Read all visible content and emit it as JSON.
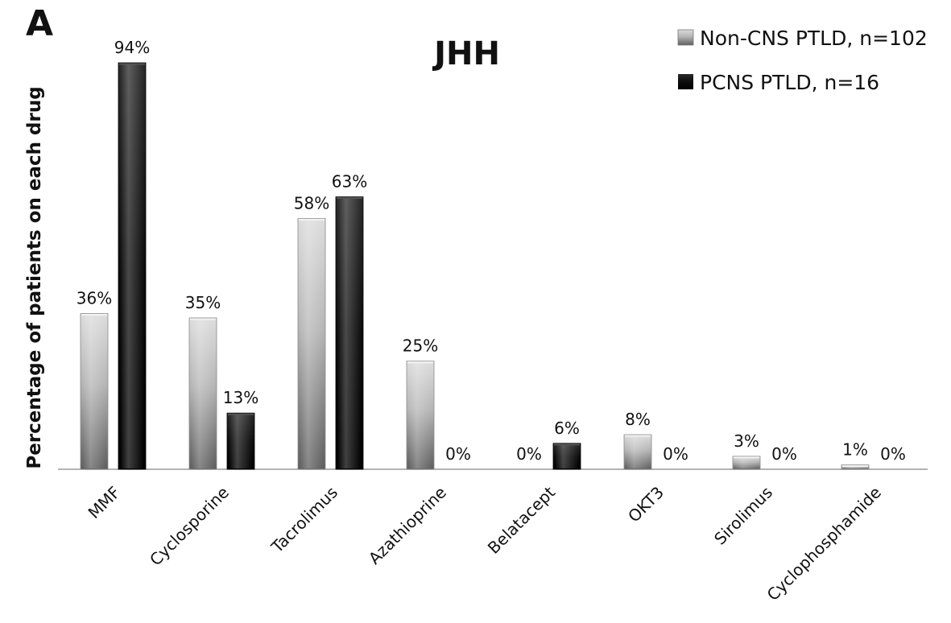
{
  "panel_label": "A",
  "chart_data": {
    "type": "bar",
    "title": "JHH",
    "xlabel": "",
    "ylabel": "Percentage of patients on each drug",
    "ylim": [
      0,
      100
    ],
    "grid": false,
    "legend_position": "top-right",
    "categories": [
      "MMF",
      "Cyclosporine",
      "Tacrolimus",
      "Azathioprine",
      "Belatacept",
      "OKT3",
      "Sirolimus",
      "Cyclophosphamide"
    ],
    "series": [
      {
        "name": "Non-CNS PTLD, n=102",
        "color": "#bdbdbd",
        "values": [
          36,
          35,
          58,
          25,
          0,
          8,
          3,
          1
        ],
        "labels": [
          "36%",
          "35%",
          "58%",
          "25%",
          "0%",
          "8%",
          "3%",
          "1%"
        ]
      },
      {
        "name": "PCNS PTLD, n=16",
        "color": "#0a0a0a",
        "values": [
          94,
          13,
          63,
          0,
          6,
          0,
          0,
          0
        ],
        "labels": [
          "94%",
          "13%",
          "63%",
          "0%",
          "6%",
          "0%",
          "0%",
          "0%"
        ]
      }
    ]
  }
}
